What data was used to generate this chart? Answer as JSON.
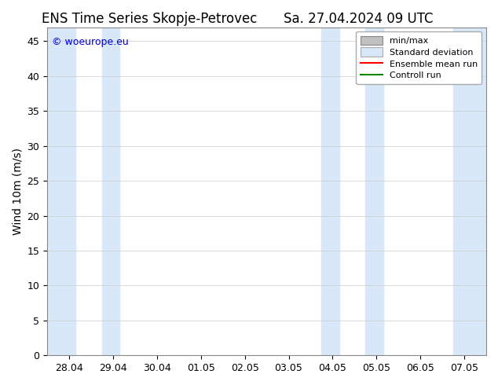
{
  "title_left": "ENS Time Series Skopje-Petrovec",
  "title_right": "Sa. 27.04.2024 09 UTC",
  "ylabel": "Wind 10m (m/s)",
  "ylim": [
    0,
    47
  ],
  "yticks": [
    0,
    5,
    10,
    15,
    20,
    25,
    30,
    35,
    40,
    45
  ],
  "watermark": "© woeurope.eu",
  "watermark_color": "#0000cc",
  "background_color": "#ffffff",
  "plot_bg_color": "#ffffff",
  "shaded_color": "#d8e8f8",
  "shaded_regions": [
    [
      -0.5,
      0.15
    ],
    [
      0.75,
      1.15
    ],
    [
      5.75,
      6.15
    ],
    [
      6.75,
      7.15
    ],
    [
      8.75,
      9.5
    ]
  ],
  "x_tick_labels": [
    "28.04",
    "29.04",
    "30.04",
    "01.05",
    "02.05",
    "03.05",
    "04.05",
    "05.05",
    "06.05",
    "07.05"
  ],
  "x_tick_positions": [
    0,
    1,
    2,
    3,
    4,
    5,
    6,
    7,
    8,
    9
  ],
  "xlim_left": -0.5,
  "xlim_right": 9.5,
  "legend_labels": [
    "min/max",
    "Standard deviation",
    "Ensemble mean run",
    "Controll run"
  ],
  "legend_colors_patch": [
    "#c0c0c0",
    "#d8e8f8"
  ],
  "legend_color_red": "#ff0000",
  "legend_color_green": "#008800",
  "title_fontsize": 12,
  "axis_fontsize": 10,
  "tick_fontsize": 9,
  "watermark_fontsize": 9
}
